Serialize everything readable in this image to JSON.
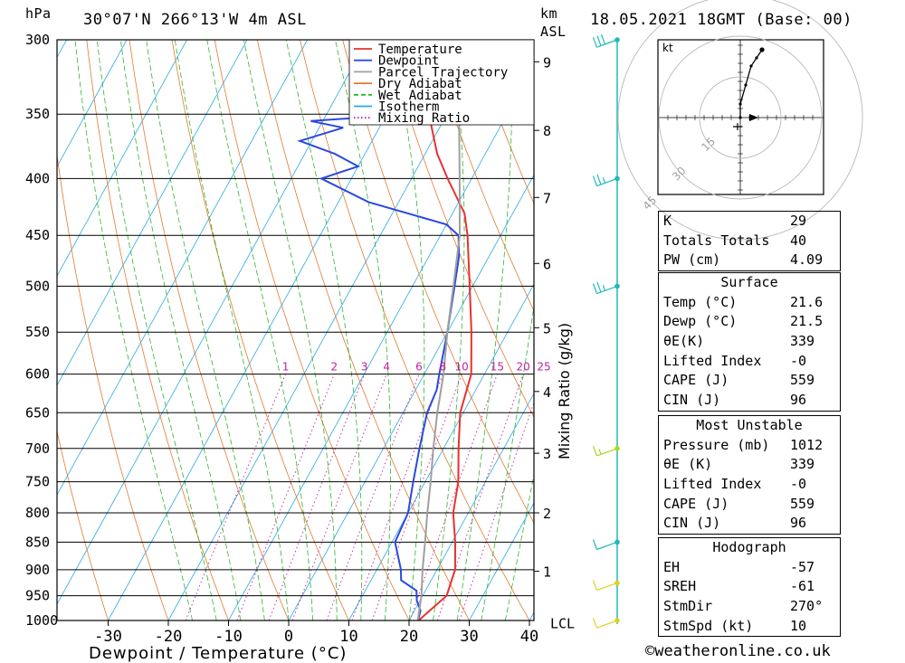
{
  "header": {
    "pressure_unit": "hPa",
    "location": "30°07'N  266°13'W  4m  ASL",
    "km_label": "km",
    "asl_label": "ASL",
    "datetime": "18.05.2021  18GMT  (Base: 00)"
  },
  "chart_data": {
    "type": "line",
    "title": "",
    "xlabel": "Dewpoint / Temperature (°C)",
    "ylabel": "hPa",
    "xlim": [
      -40,
      40
    ],
    "ylim": [
      1000,
      300
    ],
    "y_scale": "log",
    "skew": true,
    "x_ticks": [
      -30,
      -20,
      -10,
      0,
      10,
      20,
      30,
      40
    ],
    "pressure_levels": [
      300,
      350,
      400,
      450,
      500,
      550,
      600,
      650,
      700,
      750,
      800,
      850,
      900,
      950,
      1000
    ],
    "height_axis": {
      "label": "km ASL",
      "ticks": [
        {
          "km": "1",
          "p": 903
        },
        {
          "km": "2",
          "p": 800
        },
        {
          "km": "3",
          "p": 707
        },
        {
          "km": "4",
          "p": 622
        },
        {
          "km": "5",
          "p": 545
        },
        {
          "km": "6",
          "p": 477
        },
        {
          "km": "7",
          "p": 416
        },
        {
          "km": "8",
          "p": 362
        },
        {
          "km": "9",
          "p": 314
        }
      ],
      "lcl_label": "LCL",
      "lcl_pressure": 1005
    },
    "mixing_ratio": {
      "label": "Mixing Ratio (g/kg)",
      "values": [
        "1",
        "2",
        "3",
        "4",
        "6",
        "8",
        "10",
        "15",
        "20",
        "25"
      ]
    },
    "legend": {
      "placement": "top-right",
      "entries": [
        {
          "name": "Temperature",
          "color": "#e8312f",
          "style": "solid"
        },
        {
          "name": "Dewpoint",
          "color": "#2a49e0",
          "style": "solid"
        },
        {
          "name": "Parcel Trajectory",
          "color": "#a0a0a0",
          "style": "solid"
        },
        {
          "name": "Dry Adiabat",
          "color": "#e07a2e",
          "style": "solid"
        },
        {
          "name": "Wet Adiabat",
          "color": "#2fb52f",
          "style": "dashed"
        },
        {
          "name": "Isotherm",
          "color": "#2aa9e6",
          "style": "solid"
        },
        {
          "name": "Mixing Ratio",
          "color": "#c21e9c",
          "style": "dotted"
        }
      ]
    },
    "series": [
      {
        "name": "Temperature",
        "points": [
          [
            1000,
            21.6
          ],
          [
            980,
            22.5
          ],
          [
            950,
            24.0
          ],
          [
            925,
            23.5
          ],
          [
            900,
            23.0
          ],
          [
            850,
            20.5
          ],
          [
            800,
            17.5
          ],
          [
            750,
            15.5
          ],
          [
            700,
            12.5
          ],
          [
            650,
            9.5
          ],
          [
            600,
            7.8
          ],
          [
            550,
            4.0
          ],
          [
            500,
            -0.5
          ],
          [
            450,
            -5.5
          ],
          [
            430,
            -8.0
          ],
          [
            400,
            -14.0
          ],
          [
            380,
            -18.0
          ],
          [
            350,
            -23.0
          ],
          [
            340,
            -24.5
          ],
          [
            320,
            -30.0
          ],
          [
            300,
            -33.0
          ]
        ]
      },
      {
        "name": "Dewpoint",
        "points": [
          [
            1000,
            21.5
          ],
          [
            980,
            21.0
          ],
          [
            960,
            19.5
          ],
          [
            940,
            18.5
          ],
          [
            920,
            15.0
          ],
          [
            900,
            14.0
          ],
          [
            850,
            10.5
          ],
          [
            800,
            10.0
          ],
          [
            750,
            8.0
          ],
          [
            700,
            6.0
          ],
          [
            650,
            4.0
          ],
          [
            620,
            3.5
          ],
          [
            600,
            2.5
          ],
          [
            550,
            0.0
          ],
          [
            500,
            -3.0
          ],
          [
            470,
            -5.0
          ],
          [
            450,
            -7.0
          ],
          [
            440,
            -10.0
          ],
          [
            420,
            -25.0
          ],
          [
            400,
            -35.0
          ],
          [
            390,
            -30.0
          ],
          [
            380,
            -35.0
          ],
          [
            370,
            -42.0
          ],
          [
            360,
            -36.0
          ],
          [
            355,
            -42.0
          ],
          [
            350,
            -26.0
          ],
          [
            340,
            -24.0
          ],
          [
            330,
            -38.0
          ],
          [
            320,
            -25.0
          ],
          [
            310,
            -28.0
          ],
          [
            300,
            -32.0
          ]
        ]
      },
      {
        "name": "Parcel Trajectory",
        "points": [
          [
            1005,
            21.6
          ],
          [
            950,
            19.8
          ],
          [
            900,
            17.6
          ],
          [
            850,
            15.5
          ],
          [
            800,
            13.2
          ],
          [
            750,
            10.9
          ],
          [
            700,
            8.3
          ],
          [
            650,
            5.7
          ],
          [
            600,
            3.2
          ],
          [
            550,
            0.0
          ],
          [
            500,
            -3.2
          ],
          [
            450,
            -6.8
          ],
          [
            400,
            -12.0
          ],
          [
            350,
            -18.0
          ],
          [
            300,
            -25.0
          ]
        ]
      }
    ],
    "wind_profile": [
      {
        "p": 1000,
        "speed": 10,
        "color": "#e0d020"
      },
      {
        "p": 925,
        "speed": 10,
        "color": "#e0d020"
      },
      {
        "p": 850,
        "speed": 10,
        "color": "#20b8b8"
      },
      {
        "p": 700,
        "speed": 15,
        "color": "#a8d820"
      },
      {
        "p": 500,
        "speed": 25,
        "color": "#20b8b8"
      },
      {
        "p": 400,
        "speed": 25,
        "color": "#20b8b8"
      },
      {
        "p": 300,
        "speed": 30,
        "color": "#20b8b8"
      }
    ],
    "hodograph": {
      "unit_label": "kt",
      "ring_labels": [
        "15",
        "30",
        "45"
      ],
      "points": [
        [
          0,
          0
        ],
        [
          0,
          5
        ],
        [
          2,
          12
        ],
        [
          4,
          19
        ],
        [
          6,
          22
        ],
        [
          8,
          25
        ]
      ]
    }
  },
  "indices": {
    "general": [
      {
        "label": "K",
        "value": "29"
      },
      {
        "label": "Totals Totals",
        "value": "40"
      },
      {
        "label": "PW (cm)",
        "value": "4.09"
      }
    ],
    "surface": {
      "title": "Surface",
      "rows": [
        {
          "label": "Temp (°C)",
          "value": "21.6"
        },
        {
          "label": "Dewp (°C)",
          "value": "21.5"
        },
        {
          "label": "θE(K)",
          "value": "339"
        },
        {
          "label": "Lifted Index",
          "value": "-0"
        },
        {
          "label": "CAPE (J)",
          "value": "559"
        },
        {
          "label": "CIN (J)",
          "value": "96"
        }
      ]
    },
    "most_unstable": {
      "title": "Most Unstable",
      "rows": [
        {
          "label": "Pressure (mb)",
          "value": "1012"
        },
        {
          "label": "θE (K)",
          "value": "339"
        },
        {
          "label": "Lifted Index",
          "value": "-0"
        },
        {
          "label": "CAPE (J)",
          "value": "559"
        },
        {
          "label": "CIN (J)",
          "value": "96"
        }
      ]
    },
    "hodograph": {
      "title": "Hodograph",
      "rows": [
        {
          "label": "EH",
          "value": "-57"
        },
        {
          "label": "SREH",
          "value": "-61"
        },
        {
          "label": "StmDir",
          "value": "270°"
        },
        {
          "label": "StmSpd (kt)",
          "value": "10"
        }
      ]
    }
  },
  "credit": "©weatheronline.co.uk"
}
